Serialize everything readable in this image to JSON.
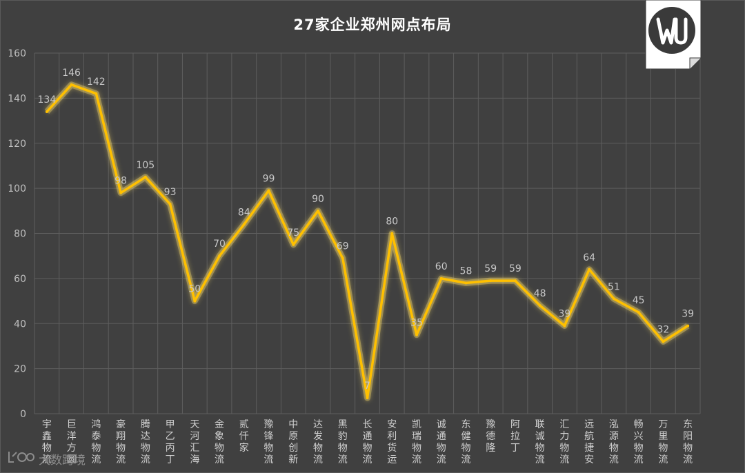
{
  "chart_data": {
    "type": "line",
    "title": "27家企业郑州网点布局",
    "xlabel": "",
    "ylabel": "",
    "ylim": [
      0,
      160
    ],
    "yticks": [
      0,
      20,
      40,
      60,
      80,
      100,
      120,
      140,
      160
    ],
    "grid": true,
    "categories": [
      "宇鑫物流",
      "巨洋方圆",
      "鸿泰物流",
      "豪翔物流",
      "腾达物流",
      "甲乙丙丁",
      "天河汇海",
      "金象物流",
      "贰仟家",
      "豫锋物流",
      "中原创新",
      "达发物流",
      "黑豹物流",
      "长通物流",
      "安利货运",
      "凯瑞物流",
      "诚通物流",
      "东健物流",
      "豫德隆",
      "阿拉丁",
      "联诚物流",
      "汇力物流",
      "远航捷安",
      "泓源物流",
      "畅兴物流",
      "万里物流",
      "东阳物流"
    ],
    "series": [
      {
        "values": [
          134,
          146,
          142,
          98,
          105,
          93,
          50,
          70,
          84,
          99,
          75,
          90,
          69,
          7,
          80,
          35,
          60,
          58,
          59,
          59,
          48,
          39,
          64,
          51,
          45,
          32,
          39
        ]
      }
    ],
    "colors": {
      "line": "#ffc000",
      "glow": "#ffe066",
      "grid": "#5e5e5e",
      "background": "#404040"
    }
  },
  "logo": {
    "text": "WU"
  },
  "watermark": {
    "text": "大数跨境"
  }
}
